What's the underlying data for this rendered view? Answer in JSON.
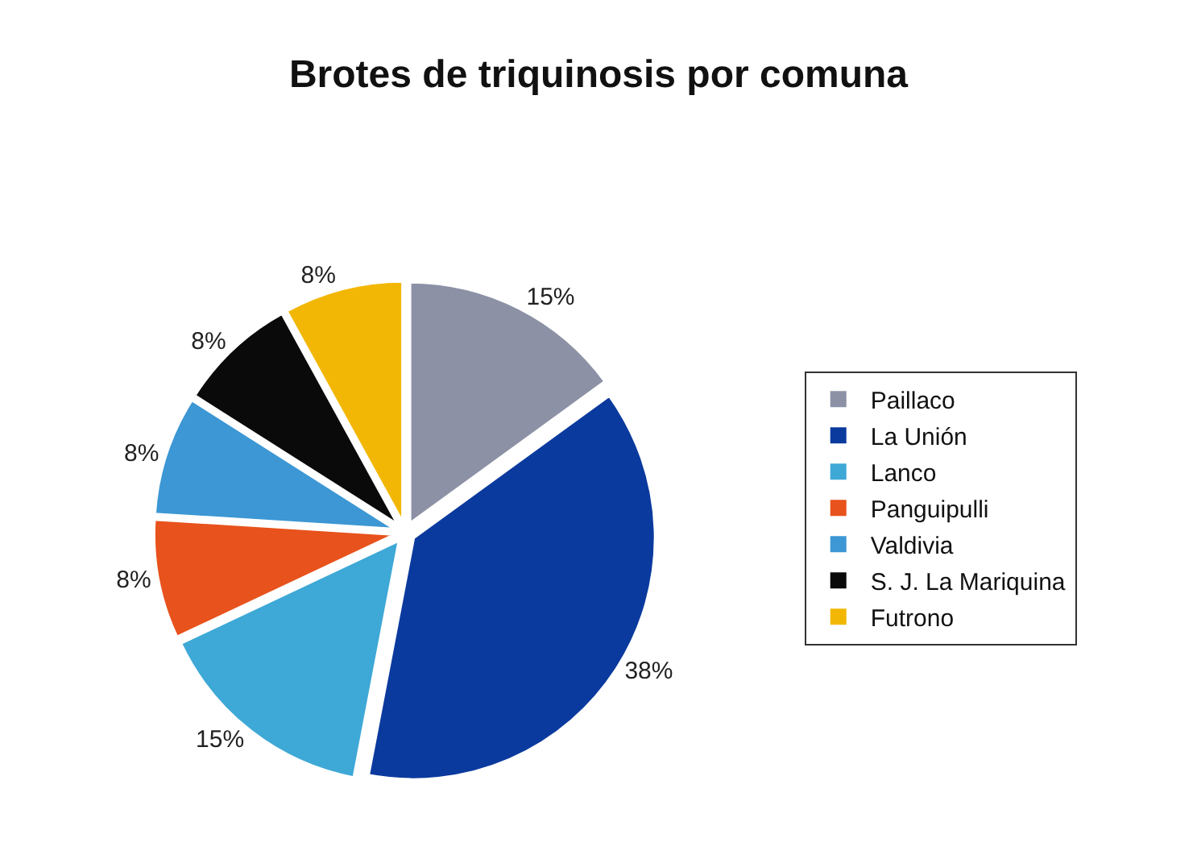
{
  "chart_data": {
    "type": "pie",
    "title": "Brotes de triquinosis por comuna",
    "categories": [
      "Paillaco",
      "La Unión",
      "Lanco",
      "Panguipulli",
      "Valdivia",
      "S. J. La Mariquina",
      "Futrono"
    ],
    "values": [
      15,
      38,
      15,
      8,
      8,
      8,
      8
    ],
    "value_labels": [
      "15%",
      "38%",
      "15%",
      "8%",
      "8%",
      "8%",
      "8%"
    ],
    "colors": [
      "#8c91a6",
      "#0b3a9e",
      "#3ea8d6",
      "#e8521c",
      "#3c97d4",
      "#0a0a0a",
      "#f2b705"
    ],
    "legend": "right"
  }
}
